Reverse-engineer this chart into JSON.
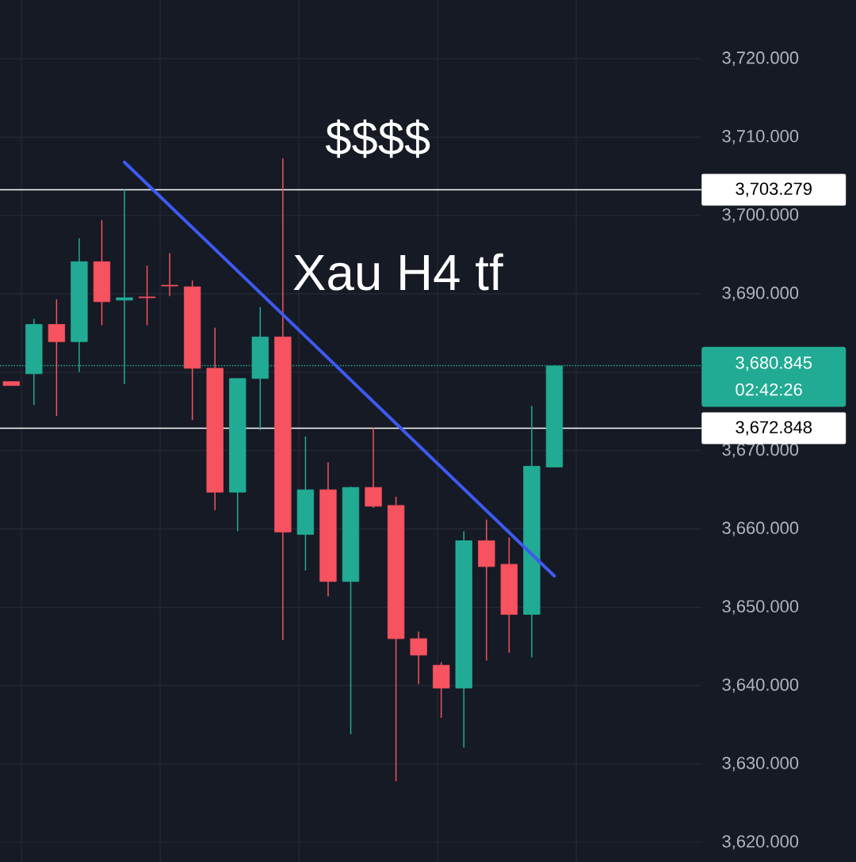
{
  "chart_data": {
    "type": "candlestick",
    "categories": [
      null,
      null,
      null,
      null,
      null,
      null,
      null,
      null,
      null,
      null,
      null,
      null,
      null,
      null,
      null,
      null,
      null,
      null,
      null,
      null,
      null,
      null,
      null,
      null,
      null,
      null,
      null,
      null,
      null,
      null,
      null
    ],
    "ohlc": [
      [
        3678.8,
        3678.8,
        3678.3,
        3678.3
      ],
      [
        3679.8,
        3686.8,
        3675.8,
        3686.1
      ],
      [
        3686.1,
        3689.3,
        3674.4,
        3683.9
      ],
      [
        3683.9,
        3697.1,
        3680.0,
        3694.1
      ],
      [
        3694.1,
        3699.4,
        3686.0,
        3689.0
      ],
      [
        3689.2,
        3703.3,
        3678.5,
        3689.5
      ],
      [
        3689.6,
        3693.6,
        3686.0,
        3689.5
      ],
      [
        3691.1,
        3695.2,
        3689.7,
        3691.0
      ],
      [
        3690.9,
        3691.7,
        3673.9,
        3680.5
      ],
      [
        3680.5,
        3685.7,
        3662.4,
        3664.7
      ],
      [
        3664.7,
        3679.2,
        3659.7,
        3679.2
      ],
      [
        3679.2,
        3688.3,
        3672.6,
        3684.5
      ],
      [
        3684.5,
        3707.3,
        3645.8,
        3659.6
      ],
      [
        3659.3,
        3671.8,
        3654.7,
        3665.0
      ],
      [
        3665.0,
        3668.5,
        3651.4,
        3653.3
      ],
      [
        3653.3,
        3665.4,
        3633.8,
        3665.3
      ],
      [
        3665.3,
        3672.9,
        3662.7,
        3662.9
      ],
      [
        3663.0,
        3664.1,
        3627.8,
        3646.0
      ],
      [
        3646.0,
        3646.9,
        3640.2,
        3643.9
      ],
      [
        3642.6,
        3643.0,
        3635.9,
        3639.7
      ],
      [
        3639.7,
        3659.7,
        3632.1,
        3658.5
      ],
      [
        3658.5,
        3661.2,
        3643.2,
        3655.2
      ],
      [
        3655.5,
        3658.9,
        3644.2,
        3649.1
      ],
      [
        3649.1,
        3675.7,
        3643.6,
        3668.0
      ],
      [
        3667.9,
        3680.9,
        3667.9,
        3680.8
      ],
      null,
      null,
      null,
      null,
      null,
      null
    ],
    "colors": [
      "#f7525f",
      "#22ab94",
      "#f7525f",
      "#22ab94",
      "#f7525f",
      "#22ab94",
      "#f7525f",
      "#f7525f",
      "#f7525f",
      "#f7525f",
      "#22ab94",
      "#22ab94",
      "#f7525f",
      "#22ab94",
      "#f7525f",
      "#22ab94",
      "#f7525f",
      "#f7525f",
      "#f7525f",
      "#f7525f",
      "#22ab94",
      "#f7525f",
      "#f7525f",
      "#22ab94",
      "#22ab94",
      null,
      null,
      null,
      null,
      null,
      null
    ],
    "series": [
      {
        "type": "line",
        "color": "#3d5af1",
        "values": [
          null,
          null,
          null,
          null,
          null,
          3706.8,
          null,
          null,
          null,
          null,
          null,
          null,
          null,
          null,
          null,
          null,
          null,
          null,
          null,
          null,
          null,
          null,
          null,
          null,
          3654.0,
          null,
          null,
          null,
          null,
          null,
          null
        ]
      }
    ],
    "ylim": [
      3617.5,
      3727.5
    ],
    "yticks": [
      {
        "value": 3620,
        "label": "3,620.000"
      },
      {
        "value": 3630,
        "label": "3,630.000"
      },
      {
        "value": 3640,
        "label": "3,640.000"
      },
      {
        "value": 3650,
        "label": "3,650.000"
      },
      {
        "value": 3660,
        "label": "3,660.000"
      },
      {
        "value": 3670,
        "label": "3,670.000"
      },
      {
        "value": 3680,
        "label": null
      },
      {
        "value": 3690,
        "label": "3,690.000"
      },
      {
        "value": 3700,
        "label": "3,700.000"
      },
      {
        "value": 3710,
        "label": "3,710.000"
      },
      {
        "value": 3720,
        "label": "3,720.000"
      }
    ],
    "ref_lines": [
      {
        "axis": "y",
        "value": 3703.279,
        "label": "3,703.279",
        "color": "#ffffff",
        "line_style": "solid"
      },
      {
        "axis": "y",
        "value": 3672.848,
        "label": "3,672.848",
        "color": "#ffffff",
        "line_style": "solid"
      },
      {
        "axis": "y",
        "value": 3680.845,
        "label": "3,680.845",
        "color": "#22ab94",
        "line_style": "dotted"
      }
    ],
    "annotations": [
      "$$$$",
      "Xau H4 tf",
      "02:42:26"
    ],
    "grid": true,
    "tick_labels": "y"
  }
}
